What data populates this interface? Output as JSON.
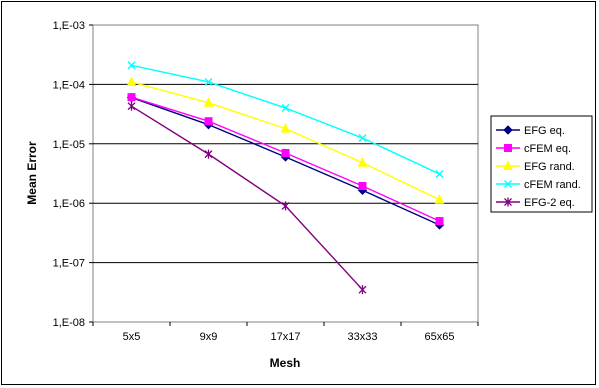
{
  "chart_data": {
    "type": "line",
    "xlabel": "Mesh",
    "ylabel": "Mean Error",
    "categories": [
      "5x5",
      "9x9",
      "17x17",
      "33x33",
      "65x65"
    ],
    "y_scale": "log",
    "ylim": [
      1e-08,
      0.001
    ],
    "y_ticks": [
      {
        "value": 0.001,
        "label": "1,E-03"
      },
      {
        "value": 0.0001,
        "label": "1,E-04"
      },
      {
        "value": 1e-05,
        "label": "1,E-05"
      },
      {
        "value": 1e-06,
        "label": "1,E-06"
      },
      {
        "value": 1e-07,
        "label": "1,E-07"
      },
      {
        "value": 1e-08,
        "label": "1,E-08"
      }
    ],
    "grid": "horizontal",
    "legend_position": "right",
    "plot_background": "#ffffff",
    "series": [
      {
        "name": "EFG eq.",
        "color": "#000080",
        "marker": "diamond",
        "values": [
          6e-05,
          2.1e-05,
          6e-06,
          1.65e-06,
          4.3e-07
        ]
      },
      {
        "name": "cFEM eq.",
        "color": "#ff00ff",
        "marker": "square",
        "values": [
          6.1e-05,
          2.4e-05,
          7e-06,
          1.95e-06,
          5e-07
        ]
      },
      {
        "name": "EFG rand.",
        "color": "#ffff00",
        "marker": "triangle",
        "values": [
          0.00011,
          4.9e-05,
          1.8e-05,
          4.8e-06,
          1.15e-06
        ]
      },
      {
        "name": "cFEM rand.",
        "color": "#00ffff",
        "marker": "x",
        "values": [
          0.00021,
          0.00011,
          4e-05,
          1.25e-05,
          3.1e-06
        ]
      },
      {
        "name": "EFG-2 eq.",
        "color": "#800080",
        "marker": "star",
        "values": [
          4.3e-05,
          6.7e-06,
          9e-07,
          3.5e-08,
          null
        ]
      }
    ]
  }
}
